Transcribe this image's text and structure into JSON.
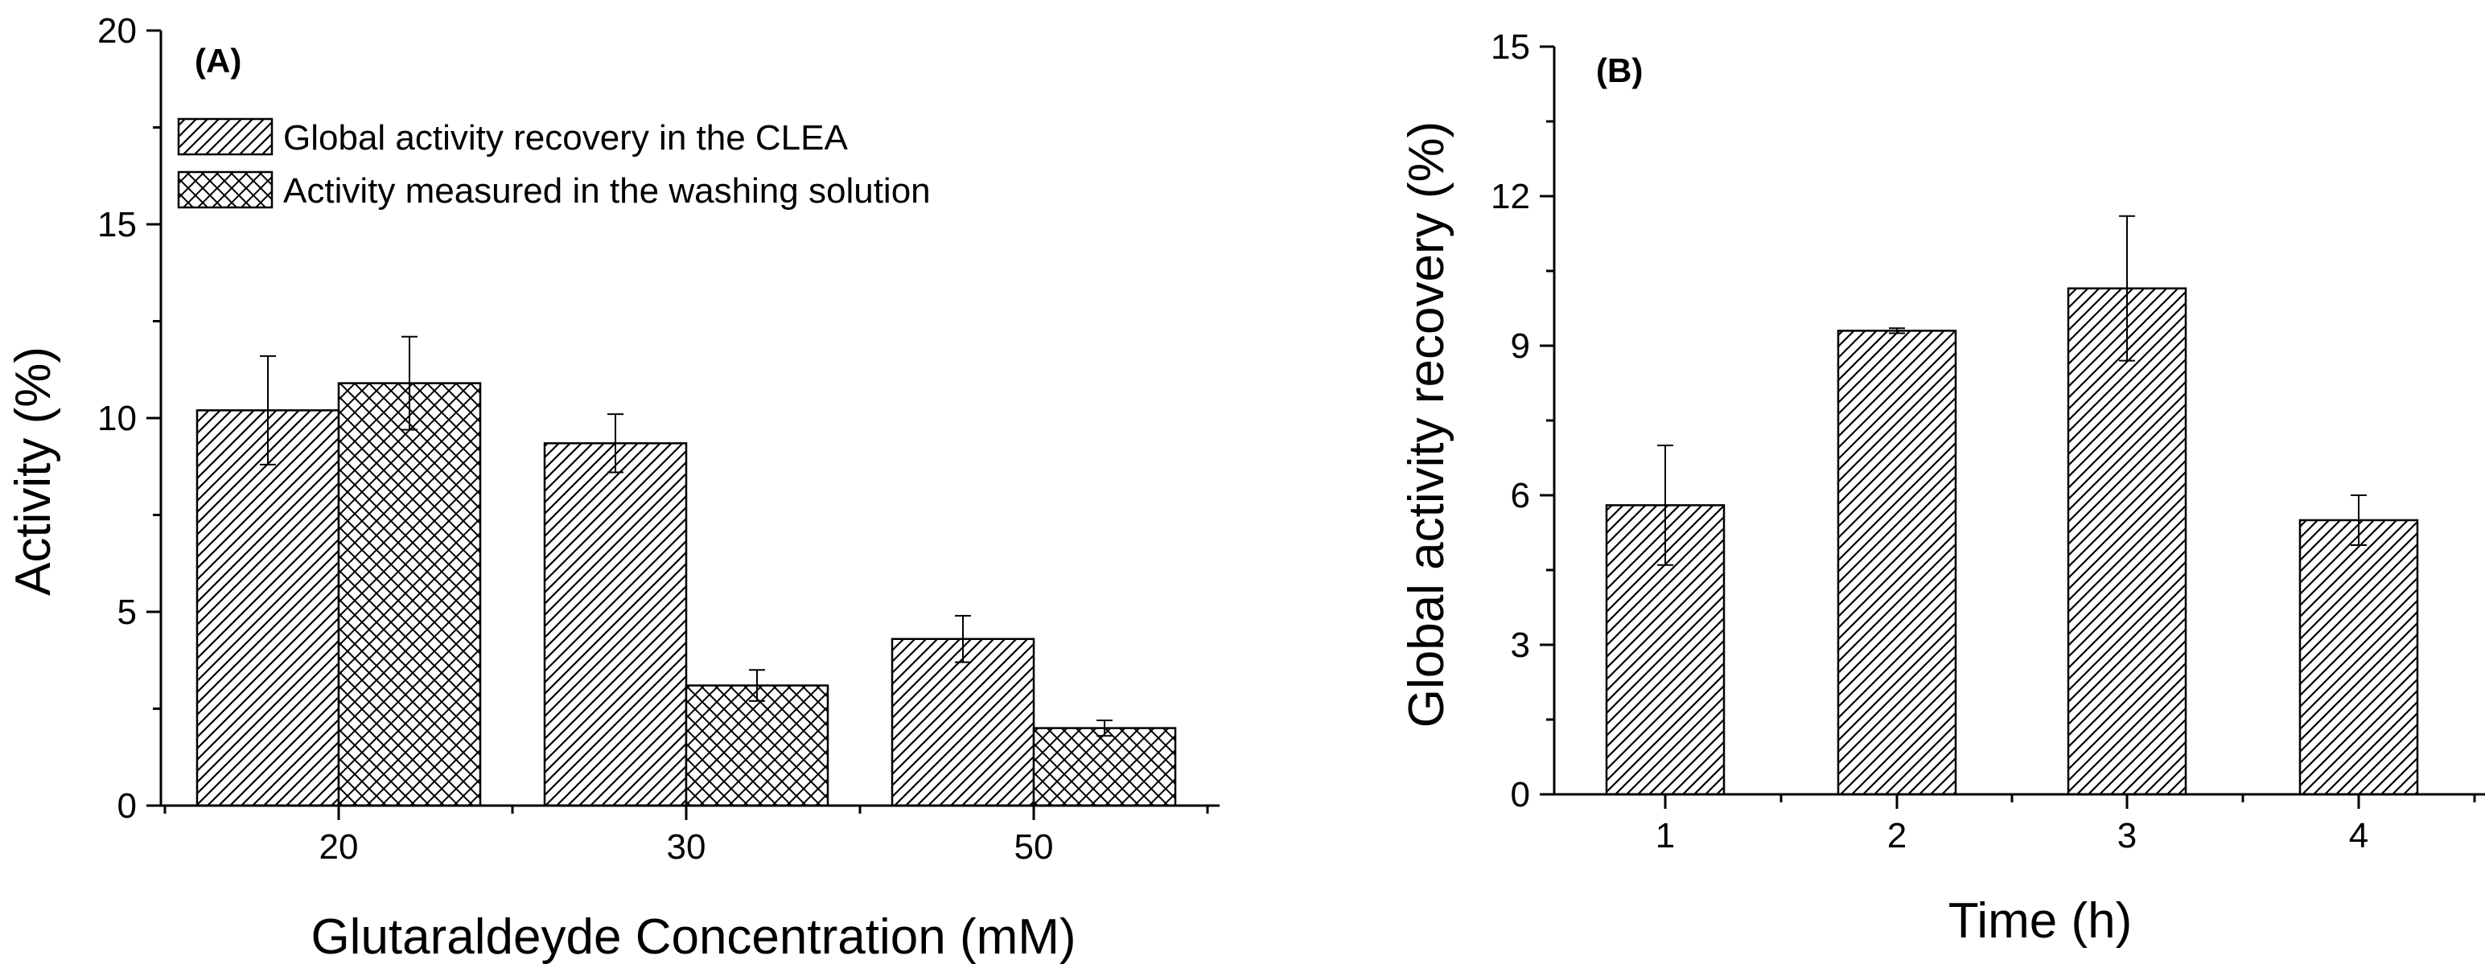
{
  "chart_data": [
    {
      "panel": "(A)",
      "type": "bar",
      "xlabel": "Glutaraldeyde Concentration (mM)",
      "ylabel": "Activity (%)",
      "ylim": [
        0,
        20
      ],
      "yticks": [
        0,
        5,
        10,
        15,
        20
      ],
      "categories": [
        "20",
        "30",
        "50"
      ],
      "series": [
        {
          "name": "Global activity recovery in the CLEA",
          "pattern": "diagonal",
          "values": [
            10.2,
            9.35,
            4.3
          ],
          "errors": [
            1.4,
            0.75,
            0.6
          ]
        },
        {
          "name": "Activity measured in the washing solution",
          "pattern": "crosshatch",
          "values": [
            10.9,
            3.1,
            2.0
          ],
          "errors": [
            1.2,
            0.4,
            0.2
          ]
        }
      ],
      "legend": "top-left",
      "grid": false
    },
    {
      "panel": "(B)",
      "type": "bar",
      "xlabel": "Time (h)",
      "ylabel": "Global activity recovery (%)",
      "ylim": [
        0,
        15
      ],
      "yticks": [
        0,
        3,
        6,
        9,
        12,
        15
      ],
      "categories": [
        "1",
        "2",
        "3",
        "4"
      ],
      "series": [
        {
          "name": "Global activity recovery",
          "pattern": "diagonal",
          "values": [
            5.8,
            9.3,
            10.15,
            5.5
          ],
          "errors": [
            1.2,
            0.05,
            1.45,
            0.5
          ]
        }
      ],
      "legend": "none",
      "grid": false
    }
  ]
}
